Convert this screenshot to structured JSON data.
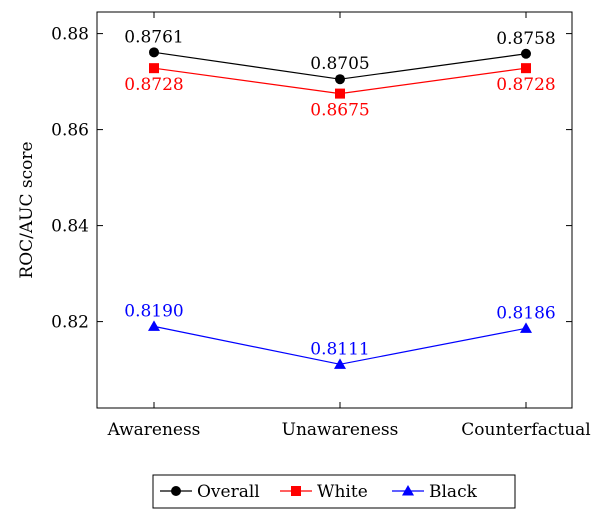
{
  "chart_data": {
    "type": "line",
    "categories": [
      "Awareness",
      "Unawareness",
      "Counterfactual"
    ],
    "ylabel": "ROC/AUC score",
    "xlabel": "",
    "title": "",
    "ylim": [
      0.802,
      0.8845
    ],
    "yticks": [
      0.82,
      0.84,
      0.86,
      0.88
    ],
    "ytick_labels": [
      "0.82",
      "0.84",
      "0.86",
      "0.88"
    ],
    "grid": false,
    "legend_position": "bottom-center",
    "series": [
      {
        "name": "Overall",
        "color": "#000000",
        "marker": "circle",
        "values": [
          0.8761,
          0.8705,
          0.8758
        ],
        "labels": [
          "0.8761",
          "0.8705",
          "0.8758"
        ],
        "label_position": "above"
      },
      {
        "name": "White",
        "color": "#ff0000",
        "marker": "square",
        "values": [
          0.8728,
          0.8675,
          0.8728
        ],
        "labels": [
          "0.8728",
          "0.8675",
          "0.8728"
        ],
        "label_position": "below"
      },
      {
        "name": "Black",
        "color": "#0000ff",
        "marker": "triangle",
        "values": [
          0.819,
          0.8111,
          0.8186
        ],
        "labels": [
          "0.8190",
          "0.8111",
          "0.8186"
        ],
        "label_position": "above"
      }
    ]
  }
}
